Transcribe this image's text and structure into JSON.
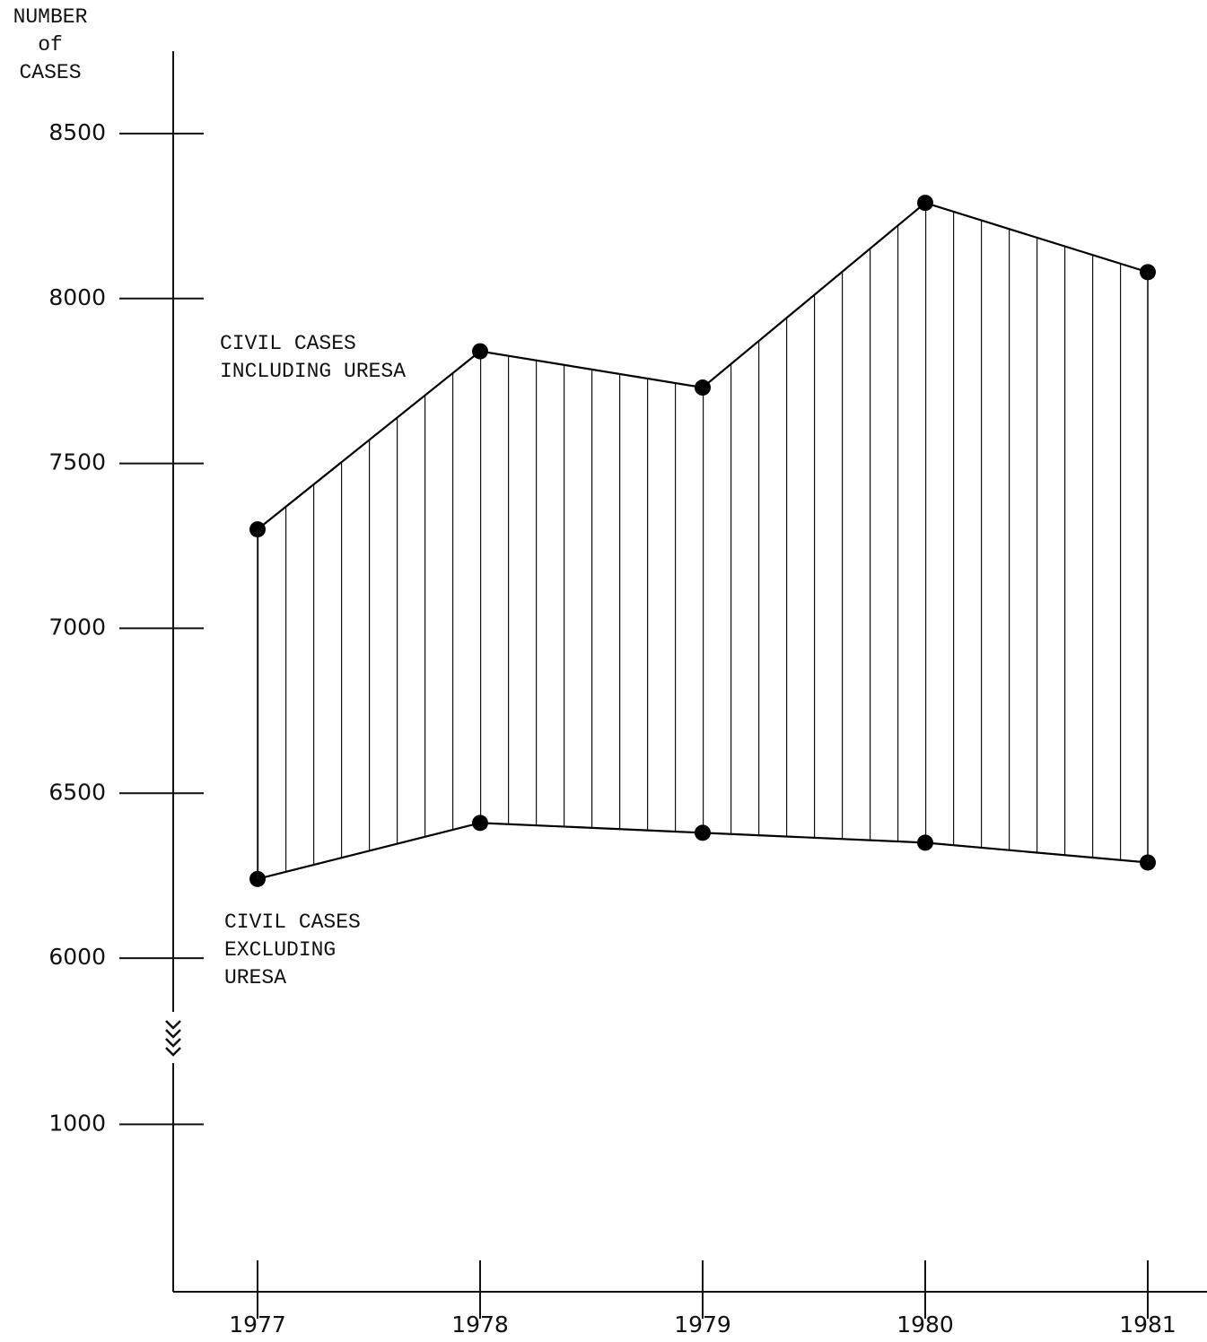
{
  "chart_data": {
    "type": "line",
    "y_label": [
      "NUMBER",
      "of",
      "CASES"
    ],
    "categories": [
      "1977",
      "1978",
      "1979",
      "1980",
      "1981"
    ],
    "series": [
      {
        "name": "CIVIL CASES INCLUDING URESA",
        "color": "#000000",
        "values": [
          7300,
          7840,
          7730,
          8290,
          8080
        ]
      },
      {
        "name": "CIVIL CASES EXCLUDING URESA",
        "color": "#000000",
        "values": [
          6240,
          6410,
          6380,
          6350,
          6290
        ]
      }
    ],
    "ylim": [
      5750,
      8750
    ],
    "yticks": [
      6000,
      6500,
      7000,
      7500,
      8000,
      8500
    ],
    "y_break": {
      "ylim": [
        0,
        1500
      ],
      "yticks": [
        1000
      ]
    },
    "fill_between": "vertical-hatch"
  }
}
